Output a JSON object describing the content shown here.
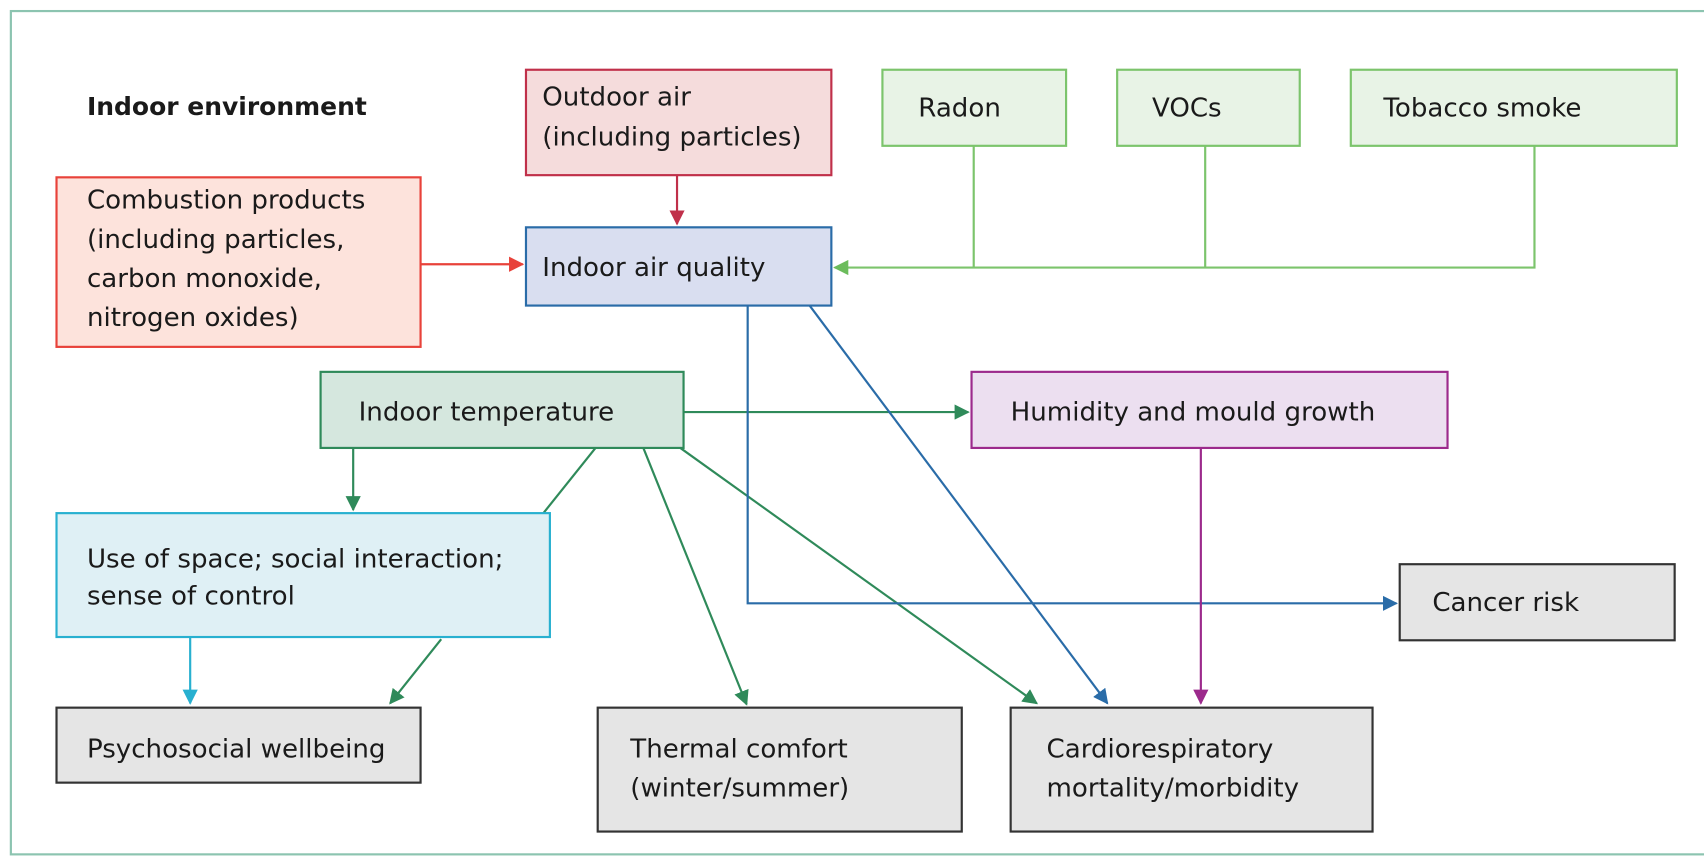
{
  "title": "Indoor environment",
  "nodes": [
    {
      "lines": [
        "Outdoor air",
        "(including particles)"
      ]
    },
    {
      "lines": [
        "Radon"
      ]
    },
    {
      "lines": [
        "VOCs"
      ]
    },
    {
      "lines": [
        "Tobacco smoke"
      ]
    },
    {
      "lines": [
        "Combustion products",
        "(including particles,",
        "carbon monoxide,",
        "nitrogen oxides)"
      ]
    },
    {
      "lines": [
        "Indoor air quality"
      ]
    },
    {
      "lines": [
        "Indoor temperature"
      ]
    },
    {
      "lines": [
        "Humidity and mould growth"
      ]
    },
    {
      "lines": [
        "Use of space; social interaction;",
        "sense of control"
      ]
    },
    {
      "lines": [
        "Cancer risk"
      ]
    },
    {
      "lines": [
        "Psychosocial wellbeing"
      ]
    },
    {
      "lines": [
        "Thermal comfort",
        "(winter/summer)"
      ]
    },
    {
      "lines": [
        "Cardiorespiratory",
        "mortality/morbidity"
      ]
    }
  ]
}
